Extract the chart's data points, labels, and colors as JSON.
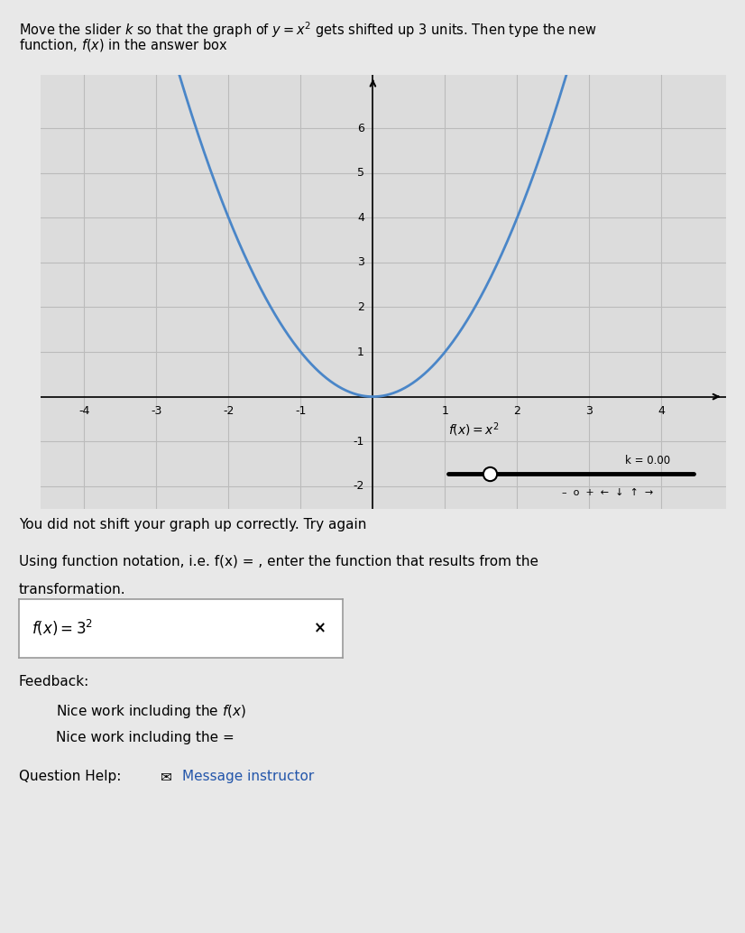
{
  "graph_xlim": [
    -4.6,
    4.9
  ],
  "graph_ylim": [
    -2.5,
    7.2
  ],
  "x_ticks": [
    -4,
    -3,
    -2,
    -1,
    1,
    2,
    3,
    4
  ],
  "y_ticks": [
    -2,
    -1,
    1,
    2,
    3,
    4,
    5,
    6
  ],
  "curve_color": "#4a86c8",
  "slider_label": "k = 0.00",
  "error_msg": "You did not shift your graph up correctly. Try again",
  "bg_color": "#e8e8e8",
  "plot_bg_color": "#dcdcdc",
  "grid_color": "#bbbbbb"
}
